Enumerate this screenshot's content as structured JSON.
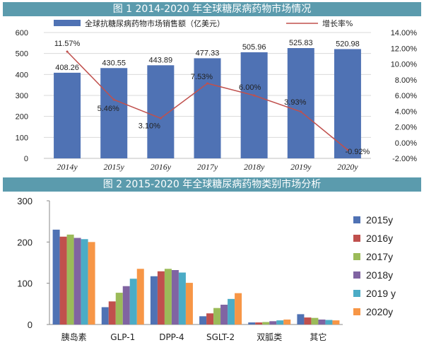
{
  "chart_data": [
    {
      "type": "bar",
      "title": "图 1   2014-2020 年全球糖尿病药物市场情况",
      "categories": [
        "2014y",
        "2015y",
        "2016y",
        "2017y",
        "2018y",
        "2019y",
        "2020y"
      ],
      "series": [
        {
          "name": "全球抗糖尿病药物市场销售额（亿美元）",
          "type": "bar",
          "axis": "left",
          "values": [
            408.26,
            430.55,
            443.89,
            477.33,
            505.96,
            525.83,
            520.98
          ],
          "labels": [
            "408.26",
            "430.55",
            "443.89",
            "477.33",
            "505.96",
            "525.83",
            "520.98"
          ],
          "color": "#4f72b4"
        },
        {
          "name": "增长率%",
          "type": "line",
          "axis": "right",
          "values": [
            11.57,
            5.46,
            3.1,
            7.53,
            6.0,
            3.93,
            -0.92
          ],
          "labels": [
            "11.57%",
            "5.46%",
            "3.10%",
            "7.53%",
            "6.00%",
            "3.93%",
            "-0.92%"
          ],
          "color": "#c0504d"
        }
      ],
      "ylim": [
        0,
        600
      ],
      "yticks": [
        "0",
        "100",
        "200",
        "300",
        "400",
        "500",
        "600"
      ],
      "y2lim": [
        -2,
        14
      ],
      "y2ticks": [
        "-2.00%",
        "0.00%",
        "2.00%",
        "4.00%",
        "6.00%",
        "8.00%",
        "10.00%",
        "12.00%",
        "14.00%"
      ],
      "legend": "top",
      "grid": true
    },
    {
      "type": "bar",
      "title": "图 2   2015-2020 年全球糖尿病药物类别市场分析",
      "categories": [
        "胰岛素",
        "GLP-1",
        "DPP-4",
        "SGLT-2",
        "双胍类",
        "其它"
      ],
      "series": [
        {
          "name": "2015y",
          "color": "#4f72b4",
          "values": [
            230,
            42,
            117,
            20,
            5,
            25
          ]
        },
        {
          "name": "2016y",
          "color": "#c0504d",
          "values": [
            213,
            56,
            129,
            27,
            5,
            17
          ]
        },
        {
          "name": "2017y",
          "color": "#9bbb59",
          "values": [
            218,
            77,
            135,
            40,
            6,
            16
          ]
        },
        {
          "name": "2018y",
          "color": "#8064a2",
          "values": [
            210,
            93,
            132,
            48,
            8,
            12
          ]
        },
        {
          "name": "2019 y",
          "color": "#4bacc6",
          "values": [
            207,
            111,
            126,
            62,
            10,
            11
          ]
        },
        {
          "name": "2020y",
          "color": "#f79646",
          "values": [
            200,
            135,
            101,
            76,
            12,
            10
          ]
        }
      ],
      "ylim": [
        0,
        300
      ],
      "yticks": [
        "0",
        "100",
        "200",
        "300"
      ],
      "legend": "right",
      "grid": false
    }
  ]
}
